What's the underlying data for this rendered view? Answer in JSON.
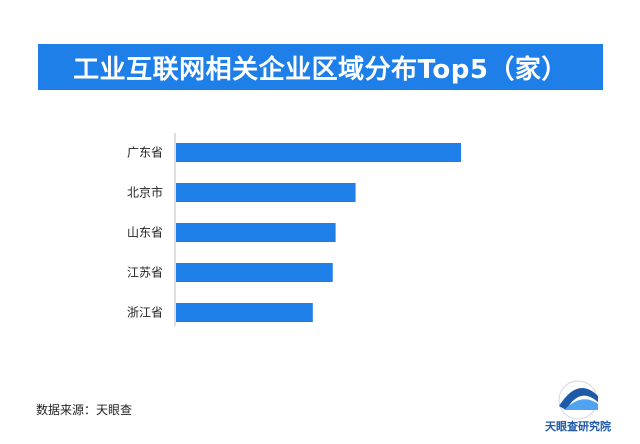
{
  "title": "工业互联网相关企业区域分布Top5（家）",
  "source": "数据来源：天眼查",
  "logo_text": "天眼查研究院",
  "colors": {
    "bar": "#1e7fe8",
    "banner": "#1e7fe8",
    "axis": "#bfbfbf"
  },
  "chart_data": {
    "type": "bar",
    "orientation": "horizontal",
    "categories": [
      "广东省",
      "北京市",
      "山东省",
      "江苏省",
      "浙江省"
    ],
    "values": [
      100,
      63,
      56,
      55,
      48
    ],
    "xlim": [
      0,
      100
    ],
    "grid": false,
    "value_labels_shown": false
  }
}
